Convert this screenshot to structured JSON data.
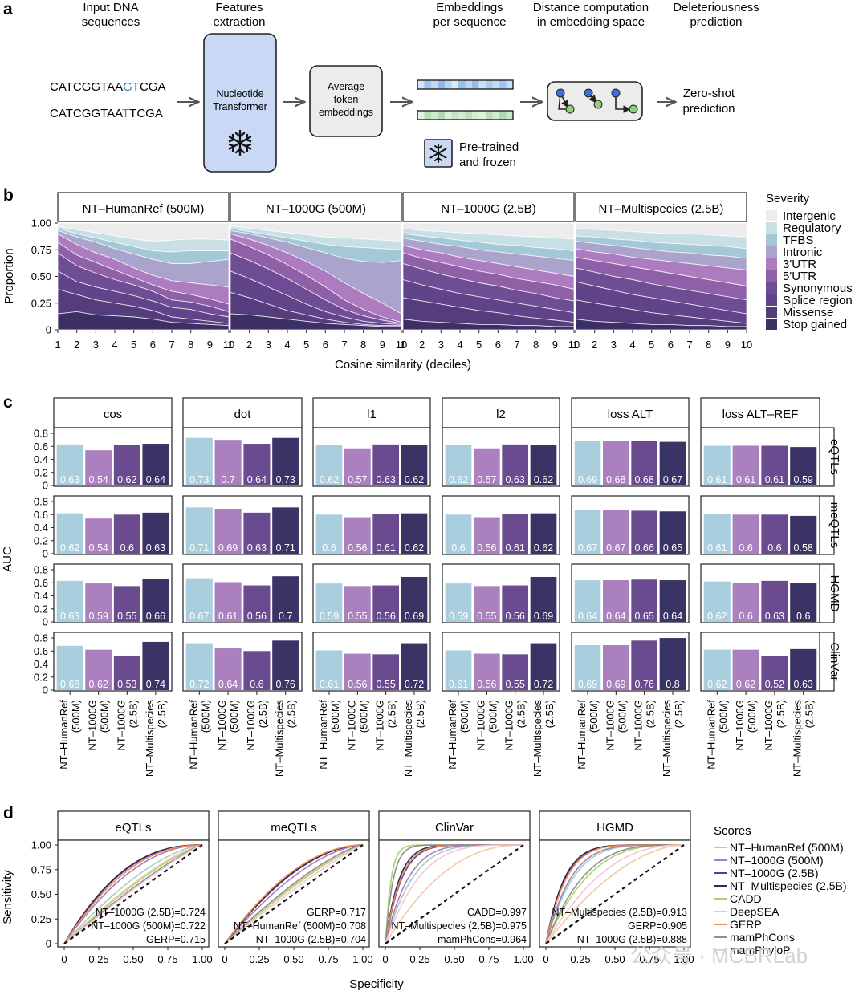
{
  "panel_letters": {
    "a": "a",
    "b": "b",
    "c": "c",
    "d": "d"
  },
  "panel_a": {
    "step_titles": [
      [
        "Input DNA",
        "sequences"
      ],
      [
        "Features",
        "extraction"
      ],
      [
        "Embeddings",
        "per sequence"
      ],
      [
        "Distance computation",
        "in embedding space"
      ],
      [
        "Deleteriousness",
        "prediction"
      ]
    ],
    "seq1": {
      "pre": "CATCGGTAA",
      "mut": "G",
      "post": "TCGA",
      "mut_color": "#3a7fb0"
    },
    "seq2": {
      "pre": "CATCGGTAA",
      "mut": "T",
      "post": "TCGA",
      "mut_color": "#4f9a5a"
    },
    "transformer_label": [
      "Nucleotide",
      "Transformer"
    ],
    "avg_label": [
      "Average",
      "token",
      "embeddings"
    ],
    "frozen_label": [
      "Pre-trained",
      "and frozen"
    ],
    "output_label": [
      "Zero-shot",
      "prediction"
    ],
    "colors": {
      "transformer_fill": "#c9d8f5",
      "grey_box": "#ececec",
      "emb_blue": "#8ab4e8",
      "emb_green": "#a8d8a8",
      "node_blue": "#3d6fd8",
      "node_green": "#8fcf7a"
    },
    "icons": [
      "snowflake-icon",
      "arrow-icon",
      "graph-icon"
    ]
  },
  "chart_data": [
    {
      "panel": "b",
      "type": "area",
      "stacked": true,
      "facets": [
        "NT–HumanRef (500M)",
        "NT–1000G (500M)",
        "NT–1000G (2.5B)",
        "NT–Multispecies (2.5B)"
      ],
      "x": [
        1,
        2,
        3,
        4,
        5,
        6,
        7,
        8,
        9,
        10
      ],
      "xlabel": "Cosine similarity (deciles)",
      "ylabel": "Proportion",
      "ylim": [
        0,
        1
      ],
      "yticks": [
        0,
        0.25,
        0.5,
        0.75,
        1.0
      ],
      "ytick_labels": [
        "0",
        "0.25",
        "0.50",
        "0.75",
        "1.00"
      ],
      "legend_title": "Severity",
      "legend_position": "right",
      "categories": [
        "Intergenic",
        "Regulatory",
        "TFBS",
        "Intronic",
        "3'UTR",
        "5'UTR",
        "Synonymous",
        "Splice region",
        "Missense",
        "Stop gained"
      ],
      "colors": [
        "#ececec",
        "#c9dfe6",
        "#a3c8d6",
        "#aaa3cb",
        "#ad7bbf",
        "#8f60a8",
        "#6f4d94",
        "#604388",
        "#553c7d",
        "#3c2f66"
      ],
      "note": "series = cumulative proportion (upper boundary) of each band, listed bottom band first",
      "boundaries": [
        [
          [
            0.15,
            0.17,
            0.14,
            0.13,
            0.12,
            0.1,
            0.07,
            0.06,
            0.05,
            0.04
          ],
          [
            0.38,
            0.33,
            0.28,
            0.25,
            0.22,
            0.18,
            0.12,
            0.1,
            0.08,
            0.06
          ],
          [
            0.55,
            0.45,
            0.4,
            0.36,
            0.32,
            0.27,
            0.21,
            0.19,
            0.15,
            0.12
          ],
          [
            0.72,
            0.6,
            0.53,
            0.47,
            0.42,
            0.36,
            0.28,
            0.26,
            0.22,
            0.17
          ],
          [
            0.82,
            0.7,
            0.63,
            0.56,
            0.49,
            0.42,
            0.36,
            0.33,
            0.29,
            0.24
          ],
          [
            0.9,
            0.8,
            0.72,
            0.66,
            0.58,
            0.51,
            0.46,
            0.44,
            0.42,
            0.4
          ],
          [
            0.93,
            0.87,
            0.82,
            0.76,
            0.71,
            0.66,
            0.62,
            0.62,
            0.64,
            0.66
          ],
          [
            0.95,
            0.9,
            0.86,
            0.82,
            0.78,
            0.74,
            0.73,
            0.74,
            0.74,
            0.74
          ],
          [
            0.97,
            0.94,
            0.91,
            0.88,
            0.85,
            0.83,
            0.84,
            0.85,
            0.85,
            0.84
          ],
          [
            1.0,
            1.0,
            1.0,
            1.0,
            1.0,
            1.0,
            1.0,
            1.0,
            1.0,
            1.0
          ]
        ],
        [
          [
            0.15,
            0.14,
            0.12,
            0.1,
            0.08,
            0.06,
            0.05,
            0.04,
            0.03,
            0.03
          ],
          [
            0.35,
            0.3,
            0.24,
            0.18,
            0.14,
            0.1,
            0.07,
            0.05,
            0.04,
            0.04
          ],
          [
            0.55,
            0.48,
            0.4,
            0.32,
            0.24,
            0.17,
            0.12,
            0.08,
            0.06,
            0.05
          ],
          [
            0.72,
            0.65,
            0.57,
            0.48,
            0.38,
            0.28,
            0.19,
            0.13,
            0.09,
            0.06
          ],
          [
            0.85,
            0.78,
            0.7,
            0.61,
            0.51,
            0.4,
            0.28,
            0.19,
            0.12,
            0.07
          ],
          [
            0.9,
            0.85,
            0.79,
            0.72,
            0.64,
            0.55,
            0.44,
            0.34,
            0.25,
            0.15
          ],
          [
            0.93,
            0.9,
            0.86,
            0.82,
            0.77,
            0.72,
            0.67,
            0.64,
            0.63,
            0.65
          ],
          [
            0.95,
            0.92,
            0.89,
            0.86,
            0.83,
            0.8,
            0.78,
            0.77,
            0.76,
            0.75
          ],
          [
            0.97,
            0.95,
            0.93,
            0.91,
            0.89,
            0.87,
            0.86,
            0.85,
            0.84,
            0.83
          ],
          [
            1.0,
            1.0,
            1.0,
            1.0,
            1.0,
            1.0,
            1.0,
            1.0,
            1.0,
            1.0
          ]
        ],
        [
          [
            0.1,
            0.08,
            0.07,
            0.06,
            0.05,
            0.05,
            0.04,
            0.04,
            0.03,
            0.03
          ],
          [
            0.3,
            0.27,
            0.24,
            0.21,
            0.18,
            0.16,
            0.13,
            0.11,
            0.09,
            0.07
          ],
          [
            0.47,
            0.42,
            0.38,
            0.34,
            0.31,
            0.28,
            0.25,
            0.22,
            0.19,
            0.16
          ],
          [
            0.62,
            0.57,
            0.52,
            0.48,
            0.44,
            0.41,
            0.37,
            0.34,
            0.3,
            0.27
          ],
          [
            0.72,
            0.67,
            0.63,
            0.59,
            0.55,
            0.52,
            0.48,
            0.45,
            0.42,
            0.38
          ],
          [
            0.79,
            0.75,
            0.72,
            0.68,
            0.65,
            0.62,
            0.59,
            0.56,
            0.53,
            0.5
          ],
          [
            0.86,
            0.83,
            0.8,
            0.78,
            0.75,
            0.73,
            0.71,
            0.69,
            0.67,
            0.65
          ],
          [
            0.9,
            0.88,
            0.86,
            0.84,
            0.82,
            0.8,
            0.79,
            0.77,
            0.76,
            0.74
          ],
          [
            0.95,
            0.93,
            0.92,
            0.91,
            0.9,
            0.89,
            0.88,
            0.87,
            0.86,
            0.85
          ],
          [
            1.0,
            1.0,
            1.0,
            1.0,
            1.0,
            1.0,
            1.0,
            1.0,
            1.0,
            1.0
          ]
        ],
        [
          [
            0.1,
            0.08,
            0.07,
            0.06,
            0.05,
            0.05,
            0.04,
            0.04,
            0.03,
            0.03
          ],
          [
            0.28,
            0.25,
            0.22,
            0.19,
            0.16,
            0.14,
            0.12,
            0.1,
            0.08,
            0.06
          ],
          [
            0.45,
            0.41,
            0.37,
            0.33,
            0.3,
            0.27,
            0.24,
            0.21,
            0.18,
            0.15
          ],
          [
            0.58,
            0.54,
            0.5,
            0.47,
            0.43,
            0.4,
            0.37,
            0.34,
            0.31,
            0.28
          ],
          [
            0.68,
            0.65,
            0.62,
            0.59,
            0.56,
            0.53,
            0.5,
            0.47,
            0.44,
            0.41
          ],
          [
            0.76,
            0.73,
            0.71,
            0.68,
            0.66,
            0.64,
            0.62,
            0.6,
            0.58,
            0.56
          ],
          [
            0.83,
            0.81,
            0.79,
            0.77,
            0.75,
            0.73,
            0.72,
            0.7,
            0.69,
            0.67
          ],
          [
            0.88,
            0.87,
            0.85,
            0.84,
            0.82,
            0.81,
            0.8,
            0.79,
            0.78,
            0.76
          ],
          [
            0.95,
            0.94,
            0.93,
            0.92,
            0.91,
            0.9,
            0.9,
            0.89,
            0.88,
            0.87
          ],
          [
            1.0,
            1.0,
            1.0,
            1.0,
            1.0,
            1.0,
            1.0,
            1.0,
            1.0,
            1.0
          ]
        ]
      ]
    },
    {
      "panel": "c",
      "type": "bar",
      "ylabel": "AUC",
      "ylim": [
        0,
        0.85
      ],
      "yticks": [
        0,
        0.2,
        0.4,
        0.6,
        0.8
      ],
      "ytick_labels": [
        "0",
        "0.2",
        "0.4",
        "0.6",
        "0.8"
      ],
      "column_facets": [
        "cos",
        "dot",
        "l1",
        "l2",
        "loss ALT",
        "loss ALT–REF"
      ],
      "row_facets": [
        "eQTLs",
        "meQTLs",
        "HGMD",
        "ClinVar"
      ],
      "categories": [
        [
          "NT–HumanRef",
          "(500M)"
        ],
        [
          "NT–1000G",
          "(500M)"
        ],
        [
          "NT–1000G",
          "(2.5B)"
        ],
        [
          "NT–Multispecies",
          "(2.5B)"
        ]
      ],
      "colors": [
        "#a9cfde",
        "#aa80be",
        "#6a4b90",
        "#3a3366"
      ],
      "values": [
        [
          [
            0.63,
            0.54,
            0.62,
            0.64
          ],
          [
            0.73,
            0.7,
            0.64,
            0.73
          ],
          [
            0.62,
            0.57,
            0.63,
            0.62
          ],
          [
            0.62,
            0.57,
            0.63,
            0.62
          ],
          [
            0.69,
            0.68,
            0.68,
            0.67
          ],
          [
            0.61,
            0.61,
            0.61,
            0.59
          ]
        ],
        [
          [
            0.62,
            0.54,
            0.6,
            0.63
          ],
          [
            0.71,
            0.69,
            0.63,
            0.71
          ],
          [
            0.6,
            0.56,
            0.61,
            0.62
          ],
          [
            0.6,
            0.56,
            0.61,
            0.62
          ],
          [
            0.67,
            0.67,
            0.66,
            0.65
          ],
          [
            0.61,
            0.6,
            0.6,
            0.58
          ]
        ],
        [
          [
            0.63,
            0.59,
            0.55,
            0.66
          ],
          [
            0.67,
            0.61,
            0.56,
            0.7
          ],
          [
            0.59,
            0.55,
            0.56,
            0.69
          ],
          [
            0.59,
            0.55,
            0.56,
            0.69
          ],
          [
            0.64,
            0.64,
            0.65,
            0.64
          ],
          [
            0.62,
            0.6,
            0.63,
            0.6
          ]
        ],
        [
          [
            0.68,
            0.62,
            0.53,
            0.74
          ],
          [
            0.72,
            0.64,
            0.6,
            0.76
          ],
          [
            0.61,
            0.56,
            0.55,
            0.72
          ],
          [
            0.61,
            0.56,
            0.55,
            0.72
          ],
          [
            0.69,
            0.69,
            0.76,
            0.8
          ],
          [
            0.62,
            0.62,
            0.52,
            0.63
          ]
        ]
      ]
    },
    {
      "panel": "d",
      "type": "line",
      "facets": [
        "eQTLs",
        "meQTLs",
        "ClinVar",
        "HGMD"
      ],
      "xlabel": "Specificity",
      "ylabel": "Sensitivity",
      "xlim": [
        0,
        1
      ],
      "ylim": [
        0,
        1
      ],
      "xticks": [
        0,
        0.25,
        0.5,
        0.75,
        1.0
      ],
      "xtick_labels": [
        "0",
        "0.25",
        "0.50",
        "0.75",
        "1.00"
      ],
      "yticks": [
        0,
        0.25,
        0.5,
        0.75,
        1.0
      ],
      "ytick_labels": [
        "0",
        "0.25",
        "0.50",
        "0.75",
        "1.00"
      ],
      "legend_title": "Scores",
      "legend_position": "right",
      "series_names": [
        "NT–HumanRef (500M)",
        "NT–1000G (500M)",
        "NT–1000G (2.5B)",
        "NT–Multispecies (2.5B)",
        "CADD",
        "DeepSEA",
        "GERP",
        "mamPhCons",
        "mamPhyloP"
      ],
      "series_colors": [
        "#a3cfc4",
        "#a77fc1",
        "#55408a",
        "#2e2a5e",
        "#a6d96a",
        "#f2c9a3",
        "#ef8a4a",
        "#909090",
        "#f5c6d6"
      ],
      "curve_power": [
        [
          1.55,
          2.0,
          2.4,
          2.35,
          1.3,
          1.35,
          2.2,
          1.2,
          1.15
        ],
        [
          1.3,
          1.65,
          1.9,
          1.85,
          1.25,
          1.3,
          1.95,
          1.35,
          1.15
        ],
        [
          5.0,
          6.0,
          8.5,
          10.0,
          25.0,
          2.3,
          9.0,
          18.0,
          4.0
        ],
        [
          5.0,
          5.5,
          7.0,
          7.5,
          3.2,
          1.8,
          6.8,
          3.6,
          2.4
        ]
      ],
      "annotations": [
        [
          "NT–1000G (2.5B)=0.724",
          "NT–1000G (500M)=0.722",
          "GERP=0.715"
        ],
        [
          "GERP=0.717",
          "NT–HumanRef (500M)=0.708",
          "NT–1000G (2.5B)=0.704"
        ],
        [
          "CADD=0.997",
          "NT–Multispecies (2.5B)=0.975",
          "mamPhCons=0.964"
        ],
        [
          "NT–Multispecies (2.5B)=0.913",
          "GERP=0.905",
          "NT–1000G (2.5B)=0.888"
        ]
      ]
    }
  ],
  "watermark": "公众号 · MCBRLab"
}
